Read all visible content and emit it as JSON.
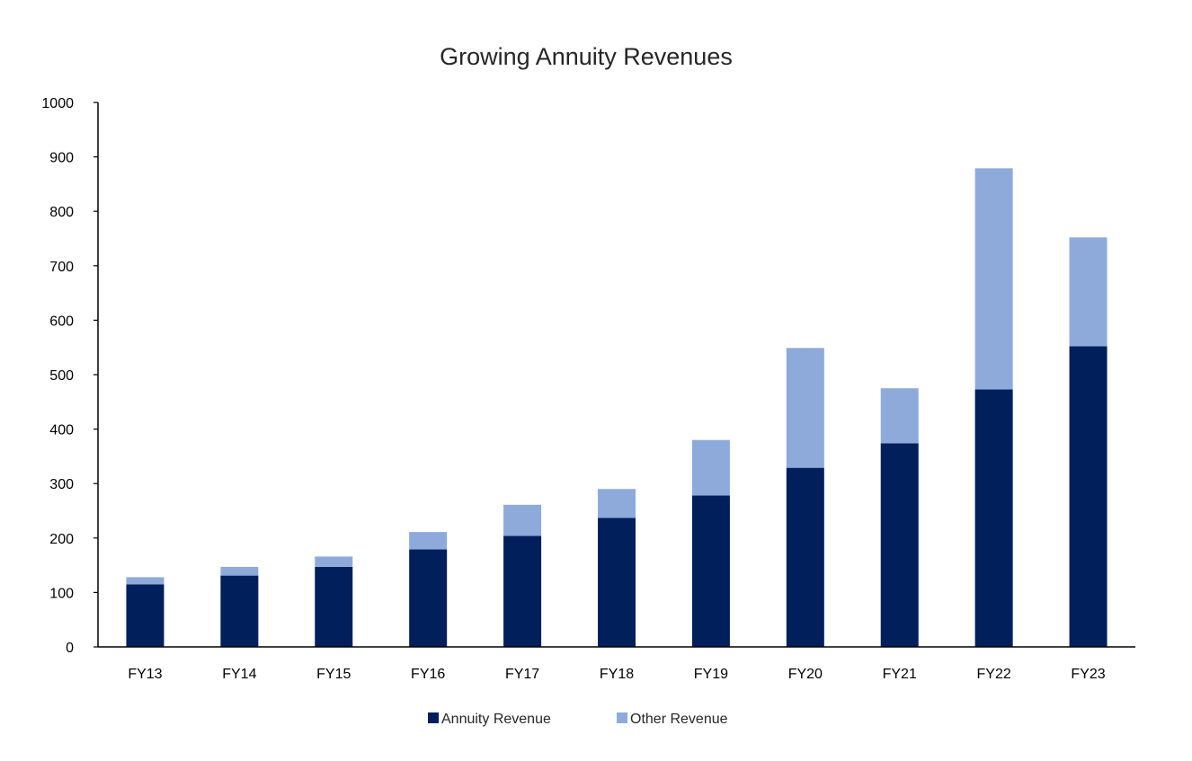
{
  "chart_data": {
    "type": "bar",
    "stacked": true,
    "title": "Growing Annuity Revenues",
    "xlabel": "",
    "ylabel": "",
    "categories": [
      "FY13",
      "FY14",
      "FY15",
      "FY16",
      "FY17",
      "FY18",
      "FY19",
      "FY20",
      "FY21",
      "FY22",
      "FY23"
    ],
    "series": [
      {
        "name": "Annuity Revenue",
        "color": "#001F5B",
        "values": [
          115,
          131,
          147,
          179,
          204,
          237,
          278,
          329,
          374,
          473,
          552
        ]
      },
      {
        "name": "Other Revenue",
        "color": "#8EAADB",
        "values": [
          13,
          16,
          19,
          32,
          57,
          53,
          102,
          220,
          101,
          406,
          200
        ]
      }
    ],
    "ylim": [
      0,
      1000
    ],
    "yticks": [
      0,
      100,
      200,
      300,
      400,
      500,
      600,
      700,
      800,
      900,
      1000
    ],
    "grid": false,
    "legend_position": "bottom"
  }
}
